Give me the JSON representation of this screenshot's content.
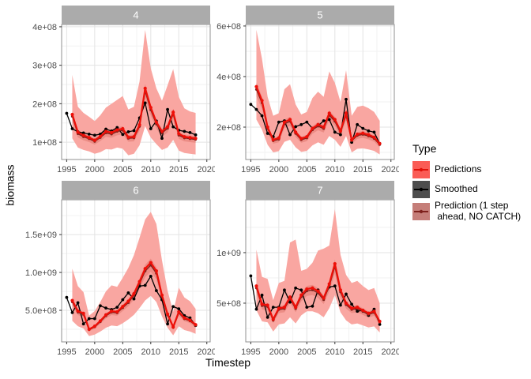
{
  "axes": {
    "y_label": "biomass",
    "x_label": "Timestep"
  },
  "legend": {
    "title": "Type",
    "position": "right",
    "items": [
      {
        "id": "predictions",
        "label": "Predictions",
        "key_fill": "#FA5C55",
        "line": "#E01108",
        "point": "#E01108"
      },
      {
        "id": "smoothed",
        "label": "Smoothed",
        "key_fill": "#4D4D4D",
        "line": "#000000",
        "point": "#000000"
      },
      {
        "id": "one_step",
        "label": "Prediction (1 step\n ahead, NO CATCH)",
        "key_fill": "#C57E79",
        "line": "#7E211C",
        "point": "#7E211C"
      }
    ]
  },
  "style": {
    "strip_fill": "#ABABAB",
    "strip_text_color": "#FFFFFF",
    "panel_bg": "#FFFFFF",
    "panel_border": "#919191",
    "grid_major": "#E3E3E3",
    "grid_minor": "#F2F2F2",
    "tick_color": "#333333",
    "tick_text_color": "#4D4D4D",
    "ribbon_fill": "#F9A6A1",
    "ribbon_dark_fill": "#EC8D86",
    "predictions_color": "#EE0F08",
    "smoothed_color": "#000000",
    "one_step_color": "#7E211C"
  },
  "chart_data": {
    "type": "line",
    "title": "",
    "xlabel": "Timestep",
    "ylabel": "biomass",
    "grid": true,
    "value_scale": 100000000.0,
    "y_unit_note": "values are in units of 1e8 biomass",
    "x_domain": [
      1994.1,
      2020.6
    ],
    "x_ticks": [
      1995,
      2000,
      2005,
      2010,
      2015,
      2020
    ],
    "x_minor": [
      1997.5,
      2002.5,
      2007.5,
      2012.5,
      2017.5
    ],
    "one_step_band_frac": 0.08,
    "facets": [
      {
        "label": "4",
        "y_domain": [
          0.55,
          4.06
        ],
        "y_tick_values": [
          1,
          2,
          3,
          4
        ],
        "y_tick_labels": [
          "1e+08",
          "2e+08",
          "3e+08",
          "4e+08"
        ],
        "y_minor": [
          1.5,
          2.5,
          3.5
        ],
        "smoothed": {
          "start": 1995,
          "values": [
            1.75,
            1.35,
            1.27,
            1.24,
            1.21,
            1.18,
            1.21,
            1.34,
            1.29,
            1.38,
            1.2,
            1.27,
            1.3,
            1.63,
            2.02,
            1.35,
            1.55,
            1.1,
            1.85,
            1.4,
            1.31,
            1.28,
            1.25,
            1.19
          ]
        },
        "predictions": {
          "start": 1996,
          "values": [
            1.72,
            1.26,
            1.18,
            1.12,
            1.05,
            1.15,
            1.28,
            1.25,
            1.32,
            1.35,
            1.13,
            1.14,
            1.45,
            2.4,
            1.9,
            1.52,
            1.28,
            1.4,
            1.78,
            1.22,
            1.14,
            1.12,
            1.1
          ]
        },
        "one_step": {
          "start": 1996,
          "values": [
            1.67,
            1.22,
            1.14,
            1.09,
            1.02,
            1.12,
            1.24,
            1.21,
            1.28,
            1.31,
            1.1,
            1.11,
            1.41,
            2.33,
            1.84,
            1.47,
            1.24,
            1.36,
            1.73,
            1.18,
            1.11,
            1.09,
            1.07
          ]
        },
        "ribbon": {
          "start": 1996,
          "lower": [
            1.1,
            0.86,
            0.8,
            0.76,
            0.7,
            0.74,
            0.82,
            0.81,
            0.86,
            0.83,
            0.66,
            0.7,
            0.92,
            1.42,
            1.12,
            0.95,
            0.8,
            0.86,
            1.06,
            0.78,
            0.72,
            0.7,
            0.68
          ],
          "upper": [
            2.75,
            1.92,
            1.76,
            1.66,
            1.55,
            1.7,
            1.9,
            2.0,
            2.1,
            2.2,
            1.85,
            1.92,
            2.58,
            3.92,
            2.92,
            2.4,
            2.08,
            2.48,
            2.9,
            2.18,
            1.88,
            1.8,
            1.76
          ]
        }
      },
      {
        "label": "5",
        "y_domain": [
          0.72,
          6.06
        ],
        "y_tick_values": [
          2,
          4,
          6
        ],
        "y_tick_labels": [
          "2e+08",
          "4e+08",
          "6e+08"
        ],
        "y_minor": [
          1,
          3,
          5
        ],
        "smoothed": {
          "start": 1995,
          "values": [
            2.9,
            2.7,
            2.45,
            1.75,
            1.62,
            2.2,
            2.25,
            1.7,
            2.02,
            2.1,
            2.2,
            1.95,
            2.05,
            2.25,
            2.3,
            1.8,
            1.7,
            3.1,
            1.4,
            2.1,
            1.95,
            1.85,
            1.8,
            1.35
          ]
        },
        "predictions": {
          "start": 1996,
          "values": [
            3.6,
            3.05,
            2.0,
            1.5,
            1.57,
            2.2,
            2.3,
            1.8,
            1.55,
            1.62,
            1.95,
            2.1,
            2.0,
            2.55,
            2.3,
            1.85,
            2.55,
            1.5,
            1.72,
            1.76,
            1.7,
            1.6,
            1.35
          ]
        },
        "one_step": {
          "start": 1996,
          "values": [
            3.49,
            2.96,
            1.94,
            1.46,
            1.52,
            2.13,
            2.23,
            1.75,
            1.5,
            1.57,
            1.89,
            2.04,
            1.94,
            2.47,
            2.23,
            1.79,
            2.47,
            1.46,
            1.67,
            1.71,
            1.65,
            1.55,
            1.31
          ]
        },
        "ribbon": {
          "start": 1996,
          "lower": [
            2.3,
            1.9,
            1.3,
            1.0,
            1.05,
            1.42,
            1.5,
            1.2,
            1.02,
            1.06,
            1.28,
            1.4,
            1.3,
            1.65,
            1.5,
            1.22,
            1.65,
            1.0,
            1.14,
            1.16,
            1.12,
            1.06,
            0.92
          ],
          "upper": [
            5.85,
            4.7,
            3.2,
            2.45,
            2.55,
            3.5,
            3.7,
            2.9,
            2.5,
            2.6,
            3.15,
            3.4,
            3.2,
            4.2,
            3.75,
            3.0,
            4.25,
            2.45,
            2.8,
            2.85,
            2.75,
            2.6,
            2.25
          ]
        }
      },
      {
        "label": "6",
        "y_domain": [
          0.83,
          19.6
        ],
        "y_tick_values": [
          5,
          10,
          15
        ],
        "y_tick_labels": [
          "5.0e+08",
          "1.0e+09",
          "1.5e+09"
        ],
        "y_minor": [
          2.5,
          7.5,
          12.5,
          17.5
        ],
        "smoothed": {
          "start": 1995,
          "values": [
            6.7,
            4.7,
            6.0,
            3.2,
            3.9,
            3.9,
            5.6,
            5.3,
            5.1,
            5.4,
            6.4,
            7.3,
            6.5,
            8.2,
            8.3,
            9.5,
            7.6,
            6.4,
            3.2,
            5.5,
            5.2,
            4.3,
            4.0,
            3.0
          ]
        },
        "predictions": {
          "start": 1996,
          "values": [
            6.3,
            4.9,
            4.6,
            2.5,
            2.9,
            3.6,
            4.4,
            4.9,
            4.8,
            5.5,
            6.2,
            7.2,
            8.8,
            10.5,
            11.3,
            10.2,
            7.0,
            4.5,
            2.8,
            4.8,
            4.0,
            3.7,
            3.1
          ]
        },
        "one_step": {
          "start": 1996,
          "values": [
            6.11,
            4.75,
            4.46,
            2.43,
            2.81,
            3.49,
            4.27,
            4.75,
            4.66,
            5.34,
            6.01,
            6.98,
            8.54,
            10.19,
            10.96,
            9.89,
            6.79,
            4.37,
            2.72,
            4.66,
            3.88,
            3.59,
            3.01
          ]
        },
        "ribbon": {
          "start": 1996,
          "lower": [
            3.6,
            2.9,
            2.6,
            1.6,
            1.8,
            2.2,
            2.7,
            3.0,
            2.9,
            3.3,
            3.8,
            4.4,
            5.3,
            6.3,
            6.9,
            6.1,
            4.2,
            2.7,
            1.7,
            2.9,
            2.4,
            2.2,
            1.9
          ],
          "upper": [
            10.5,
            8.2,
            7.4,
            4.3,
            4.9,
            6.1,
            7.5,
            8.3,
            8.1,
            9.3,
            10.6,
            12.3,
            14.6,
            17.0,
            18.0,
            16.4,
            11.6,
            7.6,
            4.8,
            8.0,
            6.7,
            6.2,
            5.2
          ]
        }
      },
      {
        "label": "7",
        "y_domain": [
          1.17,
          15.23
        ],
        "y_tick_values": [
          5,
          10
        ],
        "y_tick_labels": [
          "5e+08",
          "1e+09"
        ],
        "y_minor": [
          2.5,
          7.5,
          12.5
        ],
        "smoothed": {
          "start": 1995,
          "values": [
            7.7,
            4.4,
            5.8,
            3.6,
            4.6,
            4.6,
            6.3,
            5.1,
            6.5,
            6.3,
            4.6,
            4.7,
            6.3,
            5.5,
            6.6,
            6.7,
            4.8,
            5.9,
            4.9,
            4.2,
            4.3,
            3.8,
            4.4,
            2.9
          ]
        },
        "predictions": {
          "start": 1996,
          "values": [
            6.7,
            4.9,
            4.8,
            3.4,
            4.5,
            4.6,
            5.6,
            4.6,
            5.8,
            6.4,
            6.5,
            6.2,
            5.5,
            6.9,
            8.9,
            6.3,
            5.0,
            4.5,
            4.6,
            4.3,
            4.0,
            4.2,
            3.2
          ]
        },
        "one_step": {
          "start": 1996,
          "values": [
            6.5,
            4.75,
            4.66,
            3.3,
            4.37,
            4.46,
            5.43,
            4.46,
            5.63,
            6.21,
            6.31,
            6.01,
            5.34,
            6.69,
            8.63,
            6.11,
            4.85,
            4.37,
            4.46,
            4.17,
            3.88,
            4.07,
            3.1
          ]
        },
        "ribbon": {
          "start": 1996,
          "lower": [
            4.3,
            3.2,
            3.1,
            2.2,
            2.9,
            3.0,
            3.6,
            3.0,
            3.8,
            4.2,
            4.2,
            4.0,
            3.6,
            4.5,
            5.8,
            4.1,
            3.3,
            2.9,
            3.0,
            2.8,
            2.6,
            2.7,
            2.1
          ],
          "upper": [
            10.3,
            7.6,
            7.4,
            5.3,
            7.0,
            7.2,
            11.0,
            11.3,
            8.2,
            8.4,
            9.0,
            10.2,
            10.4,
            10.7,
            14.3,
            9.8,
            7.8,
            7.0,
            7.2,
            6.7,
            6.3,
            6.5,
            5.0
          ]
        }
      }
    ]
  }
}
